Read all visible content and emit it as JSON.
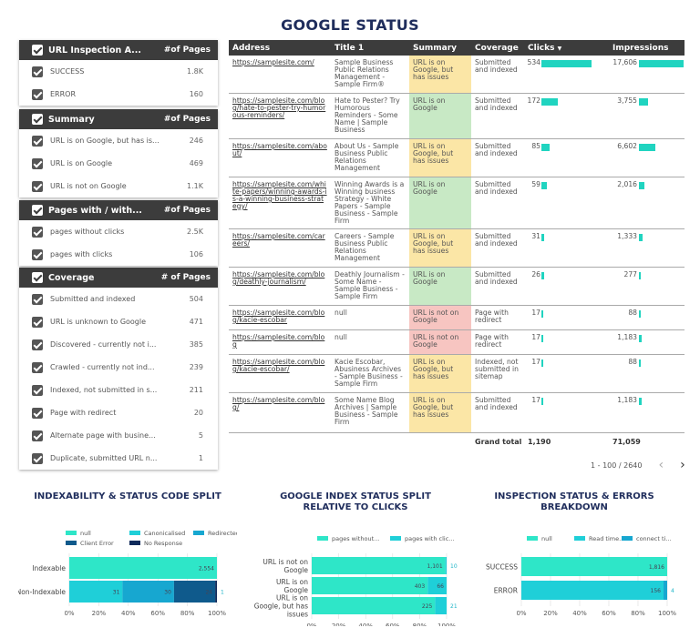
{
  "title": "GOOGLE STATUS",
  "filters": [
    {
      "header": "URL Inspection A...",
      "num_label": "#of Pages",
      "rows": [
        {
          "label": "SUCCESS",
          "value": "1.8K"
        },
        {
          "label": "ERROR",
          "value": "160"
        }
      ]
    },
    {
      "header": "Summary",
      "num_label": "#of Pages",
      "rows": [
        {
          "label": "URL is on Google, but has is...",
          "value": "246"
        },
        {
          "label": "URL is on Google",
          "value": "469"
        },
        {
          "label": "URL is not on Google",
          "value": "1.1K"
        }
      ]
    },
    {
      "header": "Pages with / with...",
      "num_label": "#of Pages",
      "rows": [
        {
          "label": "pages without clicks",
          "value": "2.5K"
        },
        {
          "label": "pages with clicks",
          "value": "106"
        }
      ]
    },
    {
      "header": "Coverage",
      "num_label": "# of Pages",
      "rows": [
        {
          "label": "Submitted and indexed",
          "value": "504"
        },
        {
          "label": "URL is unknown to Google",
          "value": "471"
        },
        {
          "label": "Discovered - currently not i...",
          "value": "385"
        },
        {
          "label": "Crawled - currently not ind...",
          "value": "239"
        },
        {
          "label": "Indexed, not submitted in s...",
          "value": "211"
        },
        {
          "label": "Page with redirect",
          "value": "20"
        },
        {
          "label": "Alternate page with busine...",
          "value": "5"
        },
        {
          "label": "Duplicate, submitted URL n...",
          "value": "1"
        }
      ]
    }
  ],
  "table": {
    "headers": [
      "Address",
      "Title 1",
      "Summary",
      "Coverage",
      "Clicks",
      "Impressions"
    ],
    "sort_icon": "▼",
    "rows": [
      {
        "address": "https://samplesite.com/",
        "title": "Sample Business Public Relations Management - Sample Firm®",
        "summary": "URL is on Google, but has issues",
        "coverage": "Submitted and indexed",
        "clicks": 534,
        "impressions": 17606,
        "clicks_label": "534",
        "impressions_label": "17,606"
      },
      {
        "address": "https://samplesite.com/blog/hate-to-pester-try-humorous-reminders/",
        "title": "Hate to Pester? Try Humorous Reminders - Some Name | Sample Business",
        "summary": "URL is on Google",
        "coverage": "Submitted and indexed",
        "clicks": 172,
        "impressions": 3755,
        "clicks_label": "172",
        "impressions_label": "3,755"
      },
      {
        "address": "https://samplesite.com/about/",
        "title": "About Us - Sample Business Public Relations Management",
        "summary": "URL is on Google, but has issues",
        "coverage": "Submitted and indexed",
        "clicks": 85,
        "impressions": 6602,
        "clicks_label": "85",
        "impressions_label": "6,602"
      },
      {
        "address": "https://samplesite.com/white-papers/winning-awards-is-a-winning-business-strategy/",
        "title": "Winning Awards is a Winning business Strategy - White Papers - Sample Business - Sample Firm",
        "summary": "URL is on Google",
        "coverage": "Submitted and indexed",
        "clicks": 59,
        "impressions": 2016,
        "clicks_label": "59",
        "impressions_label": "2,016"
      },
      {
        "address": "https://samplesite.com/careers/",
        "title": "Careers - Sample Business Public Relations Management",
        "summary": "URL is on Google, but has issues",
        "coverage": "Submitted and indexed",
        "clicks": 31,
        "impressions": 1333,
        "clicks_label": "31",
        "impressions_label": "1,333"
      },
      {
        "address": "https://samplesite.com/blog/deathly-journalism/",
        "title": "Deathly Journalism - Some Name - Sample Business - Sample Firm",
        "summary": "URL is on Google",
        "coverage": "Submitted and indexed",
        "clicks": 26,
        "impressions": 277,
        "clicks_label": "26",
        "impressions_label": "277"
      },
      {
        "address": "https://samplesite.com/blog/kacie-escobar",
        "title": "null",
        "summary": "URL is not on Google",
        "coverage": "Page with redirect",
        "clicks": 17,
        "impressions": 88,
        "clicks_label": "17",
        "impressions_label": "88"
      },
      {
        "address": "https://samplesite.com/blog",
        "title": "null",
        "summary": "URL is not on Google",
        "coverage": "Page with redirect",
        "clicks": 17,
        "impressions": 1183,
        "clicks_label": "17",
        "impressions_label": "1,183"
      },
      {
        "address": "https://samplesite.com/blog/kacie-escobar/",
        "title": "Kacie Escobar, Abusiness Archives - Sample Business - Sample Firm",
        "summary": "URL is on Google, but has issues",
        "coverage": "Indexed, not submitted in sitemap",
        "clicks": 17,
        "impressions": 88,
        "clicks_label": "17",
        "impressions_label": "88"
      },
      {
        "address": "https://samplesite.com/blog/",
        "title": "Some Name Blog Archives | Sample Business - Sample Firm",
        "summary": "URL is on Google, but has issues",
        "coverage": "Submitted and indexed",
        "clicks": 17,
        "impressions": 1183,
        "clicks_label": "17",
        "impressions_label": "1,183"
      }
    ],
    "grand_total_label": "Grand total",
    "grand_clicks": "1,190",
    "grand_impressions": "71,059",
    "pager": "1 - 100 / 2640",
    "prev_icon": "‹",
    "next_icon": "›"
  },
  "colors": {
    "issues": "#fbe6a6",
    "on": "#c8e9c5",
    "not_on": "#f7c5c1",
    "bar": "#20d4c0",
    "teal1": "#2ee6c8",
    "teal2": "#1fcfd8",
    "teal3": "#17a7d0",
    "dark": "#0f5a8c",
    "navy": "#0e2a5a"
  },
  "chart_titles": [
    "INDEXABILITY & STATUS CODE SPLIT",
    "GOOGLE INDEX STATUS SPLIT RELATIVE TO CLICKS",
    "INSPECTION STATUS & ERRORS BREAKDOWN"
  ],
  "chart_data": [
    {
      "type": "bar",
      "orientation": "horizontal",
      "stacked": "percent",
      "title": "INDEXABILITY & STATUS CODE SPLIT",
      "categories": [
        "Indexable",
        "Non-Indexable"
      ],
      "series": [
        {
          "name": "null",
          "values": [
            2554,
            0
          ],
          "color": "#2ee6c8"
        },
        {
          "name": "Canonicalised",
          "values": [
            0,
            31
          ],
          "color": "#1fcfd8"
        },
        {
          "name": "Redirected",
          "values": [
            0,
            30
          ],
          "color": "#17a7d0"
        },
        {
          "name": "Client Error",
          "values": [
            0,
            24
          ],
          "color": "#0f5a8c"
        },
        {
          "name": "No Response",
          "values": [
            0,
            1
          ],
          "color": "#0e2a5a"
        }
      ],
      "labels": [
        [
          "2,554",
          "",
          "",
          "",
          ""
        ],
        [
          "",
          "31",
          "30",
          "24",
          "1"
        ]
      ],
      "xticks": [
        "0%",
        "20%",
        "40%",
        "60%",
        "80%",
        "100%"
      ],
      "legend": "top"
    },
    {
      "type": "bar",
      "orientation": "horizontal",
      "stacked": "percent",
      "title": "GOOGLE INDEX STATUS SPLIT RELATIVE TO CLICKS",
      "categories": [
        "URL is not on Google",
        "URL is on Google",
        "URL is on Google, but has issues"
      ],
      "series": [
        {
          "name": "pages without...",
          "values": [
            1101,
            403,
            225
          ],
          "color": "#2ee6c8"
        },
        {
          "name": "pages with clic...",
          "values": [
            10,
            66,
            21
          ],
          "color": "#1fcfd8"
        }
      ],
      "labels": [
        [
          "1,101",
          "10"
        ],
        [
          "403",
          "66"
        ],
        [
          "225",
          "21"
        ]
      ],
      "xticks": [
        "0%",
        "20%",
        "40%",
        "60%",
        "80%",
        "100%"
      ],
      "legend": "top"
    },
    {
      "type": "bar",
      "orientation": "horizontal",
      "stacked": "percent",
      "title": "INSPECTION STATUS & ERRORS BREAKDOWN",
      "categories": [
        "SUCCESS",
        "ERROR"
      ],
      "series": [
        {
          "name": "null",
          "values": [
            1816,
            0
          ],
          "color": "#2ee6c8"
        },
        {
          "name": "Read time...",
          "values": [
            0,
            156
          ],
          "color": "#1fcfd8"
        },
        {
          "name": "connect ti...",
          "values": [
            0,
            4
          ],
          "color": "#17a7d0"
        }
      ],
      "labels": [
        [
          "1,816",
          "",
          ""
        ],
        [
          "",
          "156",
          "4"
        ]
      ],
      "xticks": [
        "0%",
        "20%",
        "40%",
        "60%",
        "80%",
        "100%"
      ],
      "legend": "top"
    }
  ]
}
